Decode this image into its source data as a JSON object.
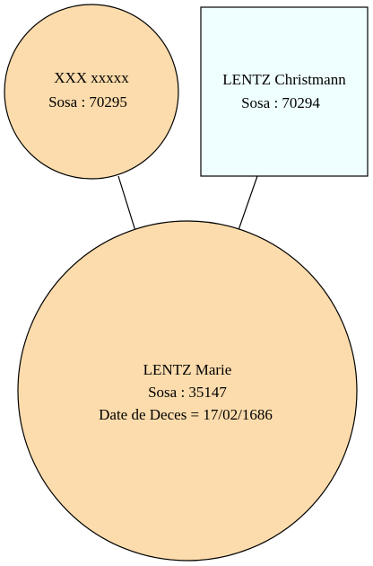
{
  "nodes": {
    "mother": {
      "lines": [
        "XXX xxxxx",
        "Sosa : 70295"
      ],
      "shape": "ellipse",
      "fill": "#fcdcac"
    },
    "father": {
      "lines": [
        "LENTZ Christmann",
        "Sosa : 70294"
      ],
      "shape": "box",
      "fill": "#efffff"
    },
    "child": {
      "lines": [
        "LENTZ Marie",
        "Sosa : 35147",
        "Date de Deces = 17/02/1686"
      ],
      "shape": "ellipse",
      "fill": "#fcdcac"
    }
  },
  "edges": [
    {
      "from": "mother",
      "to": "child"
    },
    {
      "from": "father",
      "to": "child"
    }
  ]
}
